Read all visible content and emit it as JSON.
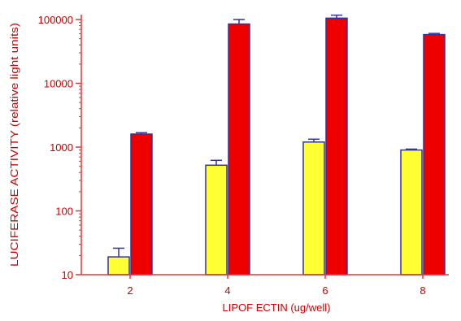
{
  "chart_data": {
    "type": "bar",
    "categories": [
      "2",
      "4",
      "6",
      "8"
    ],
    "series": [
      {
        "color": "#ffff33",
        "values": [
          19,
          520,
          1200,
          900
        ],
        "error": [
          7,
          100,
          130,
          30
        ]
      },
      {
        "color": "#ee0000",
        "values": [
          1600,
          85000,
          105000,
          58000
        ],
        "error": [
          80,
          15000,
          12000,
          2500
        ]
      }
    ],
    "title": "",
    "xlabel": "LIPOF ECTIN (ug/well)",
    "ylabel": "LUCIFERASE ACTIVITY (relative light units)",
    "yscale": "log",
    "ylim": [
      10,
      120000
    ],
    "yticks": [
      10,
      100,
      1000,
      10000,
      100000
    ],
    "ytick_labels": [
      "10",
      "100",
      "1000",
      "10000",
      "100000"
    ],
    "grid": false,
    "axis_color": "#ee3333",
    "bar_outline_color": "#333399",
    "errorbar_color": "#3333aa"
  }
}
